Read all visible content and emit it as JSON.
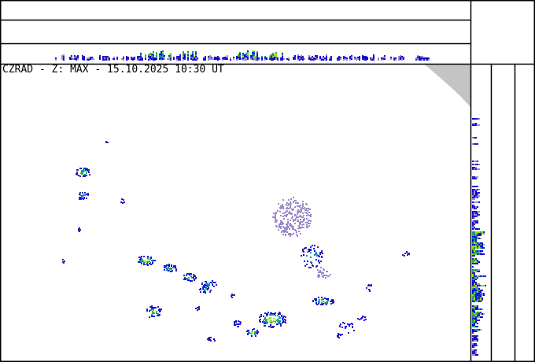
{
  "title": "CZRAD - Z: MAX - 15.10.2025 10:30 UT",
  "colors": {
    "border": "#000000",
    "outside_range": "#c4c4c4",
    "echo_scale": [
      "#9c8cc8",
      "#3020b0",
      "#0000f0",
      "#0090b0",
      "#30b040",
      "#a0e000"
    ]
  },
  "panels": [
    "top-profile-rows",
    "top-projection",
    "side-projection",
    "side-profile-columns",
    "main-map"
  ]
}
